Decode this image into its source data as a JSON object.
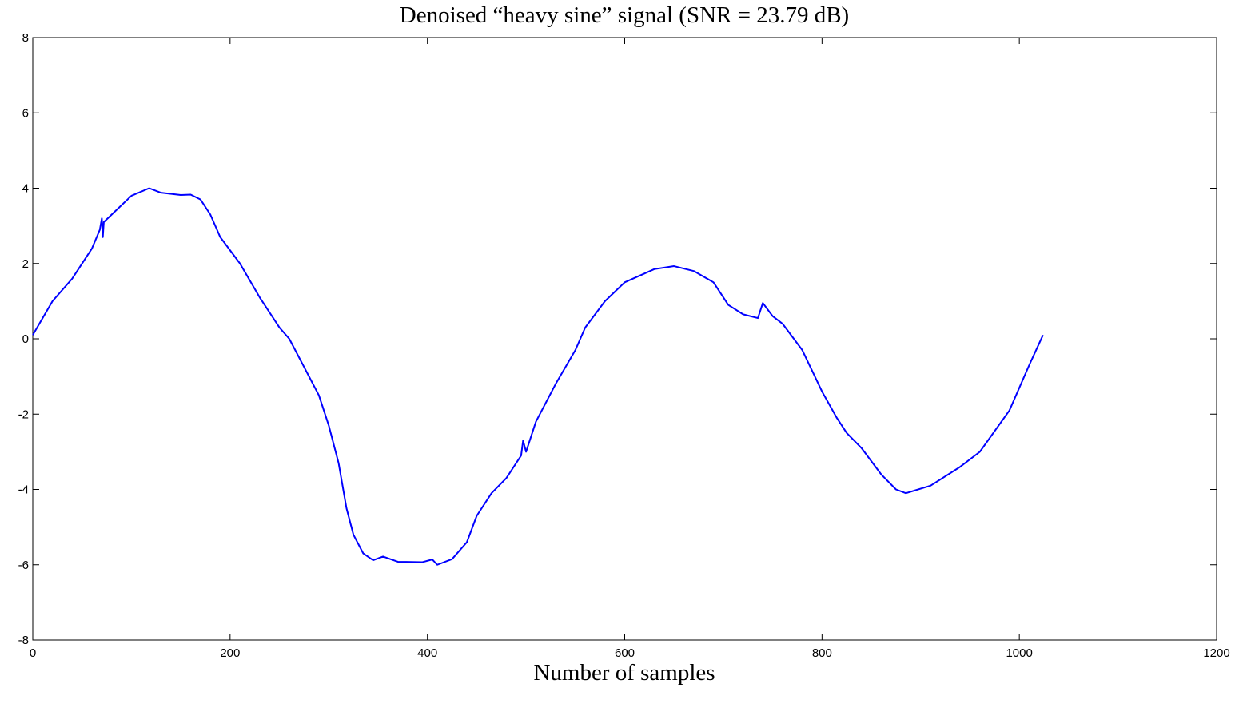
{
  "chart_data": {
    "type": "line",
    "title": "Denoised “heavy sine” signal (SNR = 23.79 dB)",
    "x_label": "Number of samples",
    "color": "#0000ff",
    "x": [
      0,
      20,
      40,
      60,
      68,
      70,
      71,
      72,
      80,
      100,
      118,
      130,
      150,
      160,
      170,
      180,
      190,
      210,
      230,
      250,
      260,
      280,
      290,
      300,
      310,
      318,
      325,
      335,
      345,
      355,
      370,
      395,
      405,
      410,
      425,
      440,
      450,
      465,
      480,
      495,
      497,
      500,
      510,
      530,
      550,
      560,
      580,
      600,
      630,
      650,
      670,
      690,
      705,
      720,
      735,
      740,
      750,
      760,
      780,
      800,
      815,
      825,
      840,
      860,
      875,
      885,
      910,
      940,
      960,
      990,
      1010,
      1024
    ],
    "values": [
      0.1,
      1.0,
      1.6,
      2.4,
      2.9,
      3.2,
      2.7,
      3.1,
      3.3,
      3.8,
      4.0,
      3.88,
      3.82,
      3.83,
      3.7,
      3.3,
      2.7,
      2.0,
      1.1,
      0.3,
      0.0,
      -1.0,
      -1.5,
      -2.3,
      -3.3,
      -4.5,
      -5.2,
      -5.7,
      -5.88,
      -5.78,
      -5.92,
      -5.93,
      -5.86,
      -6.0,
      -5.85,
      -5.4,
      -4.7,
      -4.1,
      -3.7,
      -3.1,
      -2.7,
      -3.0,
      -2.2,
      -1.2,
      -0.3,
      0.3,
      1.0,
      1.5,
      1.85,
      1.93,
      1.8,
      1.5,
      0.9,
      0.65,
      0.55,
      0.95,
      0.6,
      0.4,
      -0.3,
      -1.4,
      -2.1,
      -2.5,
      -2.9,
      -3.6,
      -4.0,
      -4.1,
      -3.9,
      -3.4,
      -3.0,
      -1.9,
      -0.7,
      0.1
    ],
    "xlim": [
      0,
      1200
    ],
    "xticks": [
      0,
      200,
      400,
      600,
      800,
      1000,
      1200
    ],
    "ylim": [
      -8,
      8
    ],
    "yticks": [
      -8,
      -6,
      -4,
      -2,
      0,
      2,
      4,
      6,
      8
    ]
  }
}
